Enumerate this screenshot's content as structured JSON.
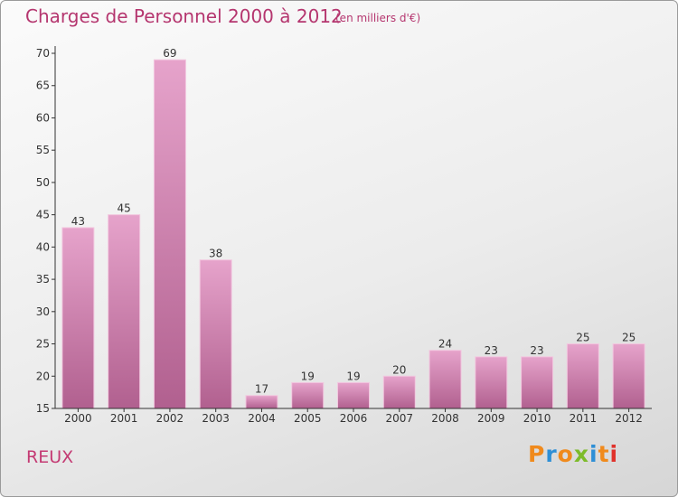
{
  "title": "Charges de Personnel 2000 à 2012",
  "subtitle": "(en milliers d'€)",
  "commune": "REUX",
  "logo": {
    "text": "Proxiti",
    "letter_colors": [
      "#f08a1c",
      "#2e8fd6",
      "#f08a1c",
      "#7dbb2a",
      "#2e8fd6",
      "#f08a1c",
      "#e0322b"
    ]
  },
  "chart_data": {
    "type": "bar",
    "title": "Charges de Personnel 2000 à 2012",
    "subtitle": "(en milliers d'€)",
    "categories": [
      "2000",
      "2001",
      "2002",
      "2003",
      "2004",
      "2005",
      "2006",
      "2007",
      "2008",
      "2009",
      "2010",
      "2011",
      "2012"
    ],
    "values": [
      43,
      45,
      69,
      38,
      17,
      19,
      19,
      20,
      24,
      23,
      23,
      25,
      25
    ],
    "xlabel": "",
    "ylabel": "",
    "ylim": [
      15,
      70
    ],
    "yticks": [
      15,
      20,
      25,
      30,
      35,
      40,
      45,
      50,
      55,
      60,
      65,
      70
    ],
    "grid": false,
    "bar_color": "#c9689b",
    "bar_highlight": "#e8a5cc"
  }
}
